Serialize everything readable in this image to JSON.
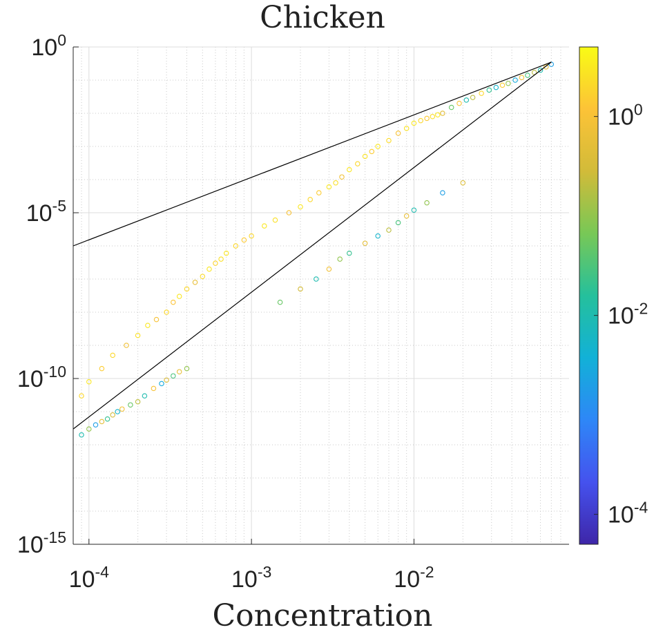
{
  "chart_data": {
    "type": "scatter",
    "title": "Chicken",
    "xlabel": "Concentration",
    "ylabel": "",
    "x_scale": "log",
    "y_scale": "log",
    "xlim": [
      8e-05,
      0.09
    ],
    "ylim": [
      1e-15,
      1
    ],
    "x_ticks": [
      {
        "value": 0.0001,
        "base": "10",
        "exp": "-4"
      },
      {
        "value": 0.001,
        "base": "10",
        "exp": "-3"
      },
      {
        "value": 0.01,
        "base": "10",
        "exp": "-2"
      }
    ],
    "y_ticks": [
      {
        "value": 1,
        "base": "10",
        "exp": "0"
      },
      {
        "value": 1e-05,
        "base": "10",
        "exp": "-5"
      },
      {
        "value": 1e-10,
        "base": "10",
        "exp": "-10"
      },
      {
        "value": 1e-15,
        "base": "10",
        "exp": "-15"
      }
    ],
    "grid": true,
    "minor_grid": true,
    "marker": "open-circle",
    "colorbar": {
      "scale": "log",
      "lim": [
        5e-05,
        5
      ],
      "colormap": "parula",
      "colors": [
        "#3e26a8",
        "#4552ee",
        "#2e87f7",
        "#12b1d7",
        "#25c09c",
        "#78c856",
        "#d2bb39",
        "#fcc337",
        "#f9fb15"
      ],
      "ticks": [
        {
          "value": 1,
          "base": "10",
          "exp": "0"
        },
        {
          "value": 0.01,
          "base": "10",
          "exp": "-2"
        },
        {
          "value": 0.0001,
          "base": "10",
          "exp": "-4"
        }
      ]
    },
    "reference_lines": [
      {
        "points": [
          [
            8e-05,
            1e-06
          ],
          [
            0.07,
            0.35
          ]
        ]
      },
      {
        "points": [
          [
            8e-05,
            3e-12
          ],
          [
            0.07,
            0.35
          ]
        ]
      }
    ],
    "series": [
      {
        "x": [
          9e-05,
          0.0001,
          0.00012,
          0.00014,
          0.00017,
          0.0002,
          0.00023,
          0.00026,
          0.0003,
          0.00033,
          0.00036,
          0.0004,
          0.00045,
          0.0005,
          0.00055,
          0.0006,
          0.00065,
          0.0007,
          0.0008,
          0.0009
        ],
        "y": [
          3e-11,
          8e-11,
          2e-10,
          5e-10,
          1e-09,
          2e-09,
          4e-09,
          6e-09,
          1e-08,
          2e-08,
          3e-08,
          5e-08,
          8e-08,
          1.2e-07,
          2e-07,
          3e-07,
          4e-07,
          6e-07,
          1e-06,
          1.5e-06
        ],
        "c": [
          2,
          3,
          1.5,
          2,
          0.8,
          2.5,
          3,
          1,
          2,
          1.2,
          3,
          2,
          0.6,
          2.2,
          3,
          1.8,
          2.5,
          3,
          2,
          1.4
        ]
      },
      {
        "x": [
          0.001,
          0.0012,
          0.0014,
          0.0017,
          0.002,
          0.0023,
          0.0026,
          0.003,
          0.0033,
          0.0036,
          0.004,
          0.0045,
          0.005,
          0.0055,
          0.006,
          0.007,
          0.008,
          0.009,
          0.01,
          0.011,
          0.012,
          0.013,
          0.014
        ],
        "y": [
          2e-06,
          4e-06,
          6e-06,
          1e-05,
          1.5e-05,
          2.5e-05,
          4e-05,
          6e-05,
          8e-05,
          0.00012,
          0.0002,
          0.0003,
          0.0005,
          0.0007,
          0.001,
          0.0015,
          0.0025,
          0.0035,
          0.005,
          0.006,
          0.007,
          0.008,
          0.009
        ],
        "c": [
          2,
          3,
          2.5,
          1,
          3,
          2,
          1.5,
          3,
          2.5,
          0.8,
          3,
          2,
          2.8,
          1.5,
          3,
          2.2,
          1,
          2.6,
          3,
          2,
          1.4,
          2.4,
          3
        ]
      },
      {
        "x": [
          0.015,
          0.017,
          0.019,
          0.021,
          0.023,
          0.026,
          0.029,
          0.032,
          0.035,
          0.038,
          0.042,
          0.046,
          0.05,
          0.055,
          0.06,
          0.065,
          0.07
        ],
        "y": [
          0.01,
          0.015,
          0.02,
          0.025,
          0.03,
          0.04,
          0.05,
          0.06,
          0.07,
          0.08,
          0.1,
          0.12,
          0.14,
          0.17,
          0.2,
          0.25,
          0.3
        ],
        "c": [
          0.5,
          0.05,
          1,
          0.01,
          0.2,
          2,
          0.02,
          0.005,
          1.5,
          0.1,
          0.003,
          0.8,
          0.03,
          0.2,
          0.01,
          0.5,
          0.002
        ]
      },
      {
        "x": [
          9e-05,
          0.0001,
          0.00011,
          0.00012,
          0.00013,
          0.00014,
          0.00015,
          0.00016,
          0.00018,
          0.0002,
          0.00022,
          0.00025,
          0.00028,
          0.0003,
          0.00033,
          0.00036,
          0.0004
        ],
        "y": [
          2e-12,
          3e-12,
          4e-12,
          5e-12,
          6e-12,
          8e-12,
          1e-11,
          1.2e-11,
          1.6e-11,
          2e-11,
          3e-11,
          5e-11,
          7e-11,
          9e-11,
          1.2e-10,
          1.6e-10,
          2e-10
        ],
        "c": [
          0.01,
          0.1,
          0.002,
          0.5,
          0.02,
          0.3,
          0.005,
          0.8,
          0.05,
          0.2,
          0.01,
          1,
          0.003,
          0.4,
          0.03,
          0.6,
          0.1
        ]
      },
      {
        "x": [
          0.0015,
          0.002,
          0.0025,
          0.003,
          0.0035,
          0.004,
          0.005,
          0.006,
          0.007,
          0.008,
          0.009,
          0.01,
          0.012,
          0.015,
          0.02
        ],
        "y": [
          2e-08,
          5e-08,
          1e-07,
          2e-07,
          4e-07,
          6e-07,
          1.2e-06,
          2e-06,
          3e-06,
          5e-06,
          8e-06,
          1.2e-05,
          2e-05,
          4e-05,
          8e-05
        ],
        "c": [
          0.05,
          0.3,
          0.01,
          0.8,
          0.1,
          0.02,
          0.5,
          0.005,
          0.2,
          0.03,
          0.6,
          0.01,
          0.1,
          0.002,
          0.4
        ]
      }
    ]
  }
}
